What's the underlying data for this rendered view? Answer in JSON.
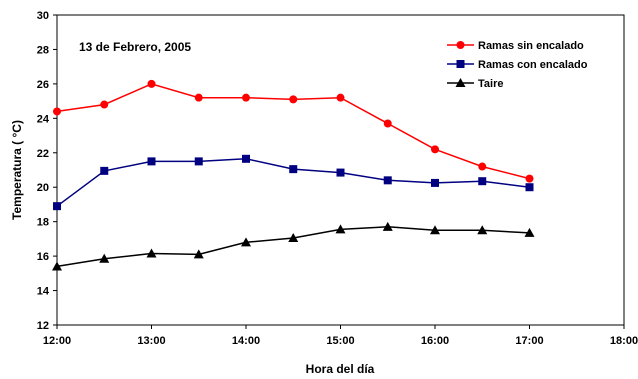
{
  "chart_data": {
    "type": "line",
    "annotation": "13 de Febrero, 2005",
    "xlabel": "Hora del día",
    "ylabel": "Temperatura ( °C)",
    "xlim": [
      12,
      18
    ],
    "ylim": [
      12,
      30
    ],
    "x_ticks": [
      {
        "value": 12,
        "label": "12:00"
      },
      {
        "value": 13,
        "label": "13:00"
      },
      {
        "value": 14,
        "label": "14:00"
      },
      {
        "value": 15,
        "label": "15:00"
      },
      {
        "value": 16,
        "label": "16:00"
      },
      {
        "value": 17,
        "label": "17:00"
      },
      {
        "value": 18,
        "label": "18:00"
      }
    ],
    "y_ticks": [
      12,
      14,
      16,
      18,
      20,
      22,
      24,
      26,
      28,
      30
    ],
    "grid": false,
    "legend_position": "top-right",
    "x": [
      12,
      12.5,
      13,
      13.5,
      14,
      14.5,
      15,
      15.5,
      16,
      16.5,
      17
    ],
    "series": [
      {
        "name": "Ramas sin encalado",
        "color": "#ff0000",
        "marker": "circle",
        "values": [
          24.4,
          24.8,
          26.0,
          25.2,
          25.2,
          25.1,
          25.2,
          23.7,
          22.2,
          21.2,
          20.5
        ]
      },
      {
        "name": "Ramas con encalado",
        "color": "#000080",
        "marker": "square",
        "values": [
          18.9,
          20.95,
          21.5,
          21.5,
          21.65,
          21.05,
          20.85,
          20.4,
          20.25,
          20.35,
          20.0
        ]
      },
      {
        "name": "Taire",
        "color": "#000000",
        "marker": "triangle",
        "values": [
          15.4,
          15.85,
          16.15,
          16.1,
          16.8,
          17.05,
          17.55,
          17.7,
          17.5,
          17.5,
          17.35
        ]
      }
    ]
  }
}
